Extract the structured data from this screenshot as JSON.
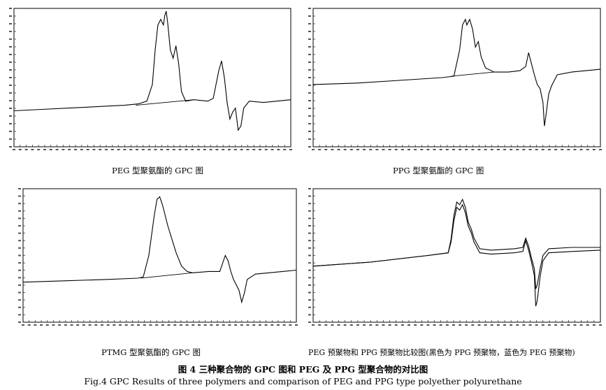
{
  "figure": {
    "title_cn": "图 4   三种聚合物的 GPC 图和 PEG 及 PPG 型聚合物的对比图",
    "title_en": "Fig.4    GPC Results of three polymers and comparison of PEG and PPG type polyether polyurethane"
  },
  "panels": [
    {
      "id": "peg",
      "caption": "PEG 型聚氨酯的 GPC 图"
    },
    {
      "id": "ppg",
      "caption": "PPG 型聚氨酯的 GPC 图"
    },
    {
      "id": "ptmg",
      "caption": "PTMG 型聚氨酯的 GPC 图"
    },
    {
      "id": "compare",
      "caption": "PEG 预聚物和 PPG 预聚物比较图(黑色为 PPG 预聚物，蓝色为 PEG 预聚物)"
    }
  ],
  "chart_data": [
    {
      "type": "line",
      "title": "PEG 型聚氨酯的 GPC 图",
      "x_range": [
        0,
        100
      ],
      "y_range": [
        0,
        100
      ],
      "series": [
        {
          "values": [
            [
              0,
              26
            ],
            [
              10,
              27
            ],
            [
              20,
              28
            ],
            [
              30,
              29
            ],
            [
              40,
              30
            ],
            [
              45,
              31
            ],
            [
              48,
              33
            ],
            [
              50,
              45
            ],
            [
              51,
              70
            ],
            [
              52,
              88
            ],
            [
              53,
              92
            ],
            [
              54,
              88
            ],
            [
              54.5,
              95
            ],
            [
              55,
              98
            ],
            [
              55.5,
              90
            ],
            [
              56.5,
              70
            ],
            [
              57.5,
              64
            ],
            [
              58.5,
              73
            ],
            [
              59.5,
              60
            ],
            [
              60.5,
              40
            ],
            [
              62,
              33
            ],
            [
              65,
              34
            ],
            [
              70,
              33
            ],
            [
              72,
              35
            ],
            [
              74,
              55
            ],
            [
              75,
              62
            ],
            [
              76,
              50
            ],
            [
              77,
              32
            ],
            [
              78,
              20
            ],
            [
              79,
              25
            ],
            [
              80,
              28
            ],
            [
              81,
              12
            ],
            [
              82,
              15
            ],
            [
              83,
              28
            ],
            [
              85,
              33
            ],
            [
              90,
              32
            ],
            [
              95,
              33
            ],
            [
              100,
              34
            ]
          ]
        }
      ],
      "baseline": [
        [
          44,
          30
        ],
        [
          65,
          34
        ]
      ]
    },
    {
      "type": "line",
      "title": "PPG 型聚氨酯的 GPC 图",
      "x_range": [
        0,
        100
      ],
      "y_range": [
        0,
        100
      ],
      "series": [
        {
          "values": [
            [
              0,
              45
            ],
            [
              15,
              46
            ],
            [
              30,
              48
            ],
            [
              45,
              50
            ],
            [
              49,
              51
            ],
            [
              51,
              70
            ],
            [
              52,
              88
            ],
            [
              53,
              92
            ],
            [
              53.5,
              88
            ],
            [
              54,
              90
            ],
            [
              54.5,
              92
            ],
            [
              55.5,
              85
            ],
            [
              56.5,
              72
            ],
            [
              57.5,
              76
            ],
            [
              58.5,
              65
            ],
            [
              60,
              57
            ],
            [
              63,
              54
            ],
            [
              68,
              54
            ],
            [
              72,
              55
            ],
            [
              74,
              58
            ],
            [
              75,
              68
            ],
            [
              76,
              60
            ],
            [
              77,
              52
            ],
            [
              78,
              45
            ],
            [
              79,
              42
            ],
            [
              80,
              32
            ],
            [
              80.5,
              15
            ],
            [
              81,
              22
            ],
            [
              82,
              38
            ],
            [
              83,
              44
            ],
            [
              85,
              52
            ],
            [
              90,
              54
            ],
            [
              95,
              55
            ],
            [
              100,
              56
            ]
          ]
        }
      ],
      "baseline": [
        [
          48,
          51
        ],
        [
          63,
          54
        ]
      ]
    },
    {
      "type": "line",
      "title": "PTMG 型聚氨酯的 GPC 图",
      "x_range": [
        0,
        100
      ],
      "y_range": [
        0,
        100
      ],
      "series": [
        {
          "values": [
            [
              0,
              30
            ],
            [
              15,
              31
            ],
            [
              30,
              32
            ],
            [
              42,
              33
            ],
            [
              44,
              34
            ],
            [
              46,
              50
            ],
            [
              48,
              80
            ],
            [
              49,
              92
            ],
            [
              50,
              94
            ],
            [
              51,
              88
            ],
            [
              53,
              72
            ],
            [
              56,
              52
            ],
            [
              58,
              42
            ],
            [
              60,
              38
            ],
            [
              62,
              37
            ],
            [
              68,
              38
            ],
            [
              72,
              38
            ],
            [
              74,
              50
            ],
            [
              75,
              46
            ],
            [
              76,
              38
            ],
            [
              77,
              32
            ],
            [
              78,
              28
            ],
            [
              79,
              24
            ],
            [
              80,
              15
            ],
            [
              81,
              22
            ],
            [
              82,
              32
            ],
            [
              85,
              36
            ],
            [
              90,
              37
            ],
            [
              95,
              38
            ],
            [
              100,
              39
            ]
          ]
        }
      ],
      "baseline": [
        [
          43,
          33
        ],
        [
          62,
          37
        ]
      ]
    },
    {
      "type": "line",
      "title": "PEG 预聚物和 PPG 预聚物比较图(黑色为 PPG 预聚物，蓝色为 PEG 预聚物)",
      "x_range": [
        0,
        100
      ],
      "y_range": [
        0,
        100
      ],
      "series": [
        {
          "values": [
            [
              0,
              42
            ],
            [
              20,
              45
            ],
            [
              40,
              50
            ],
            [
              47,
              52
            ],
            [
              48,
              62
            ],
            [
              49,
              80
            ],
            [
              50,
              90
            ],
            [
              51,
              88
            ],
            [
              52,
              92
            ],
            [
              53,
              86
            ],
            [
              54,
              75
            ],
            [
              55,
              70
            ],
            [
              56,
              63
            ],
            [
              58,
              55
            ],
            [
              62,
              54
            ],
            [
              70,
              55
            ],
            [
              73,
              56
            ],
            [
              74,
              63
            ],
            [
              75,
              57
            ],
            [
              76,
              48
            ],
            [
              77,
              40
            ],
            [
              77.5,
              25
            ],
            [
              78,
              28
            ],
            [
              79,
              40
            ],
            [
              80,
              50
            ],
            [
              82,
              55
            ],
            [
              90,
              56
            ],
            [
              100,
              56
            ]
          ]
        },
        {
          "values": [
            [
              0,
              42
            ],
            [
              20,
              45
            ],
            [
              40,
              50
            ],
            [
              47,
              52
            ],
            [
              48,
              60
            ],
            [
              49,
              76
            ],
            [
              50,
              86
            ],
            [
              51,
              84
            ],
            [
              52,
              88
            ],
            [
              53,
              82
            ],
            [
              54,
              72
            ],
            [
              55,
              67
            ],
            [
              56,
              60
            ],
            [
              58,
              52
            ],
            [
              62,
              51
            ],
            [
              70,
              52
            ],
            [
              73,
              53
            ],
            [
              74,
              61
            ],
            [
              75,
              54
            ],
            [
              76,
              45
            ],
            [
              77,
              35
            ],
            [
              77.5,
              12
            ],
            [
              78,
              16
            ],
            [
              79,
              34
            ],
            [
              80,
              46
            ],
            [
              82,
              52
            ],
            [
              90,
              53
            ],
            [
              100,
              54
            ]
          ]
        }
      ]
    }
  ]
}
